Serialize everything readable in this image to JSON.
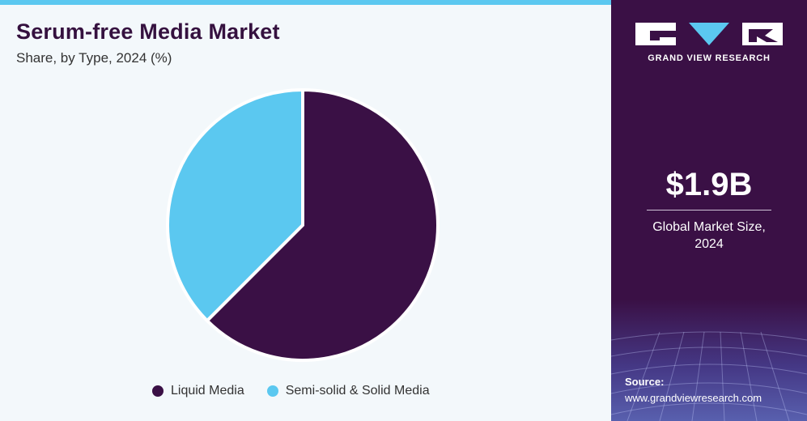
{
  "chart_data": {
    "type": "pie",
    "title": "Serum-free Media Market",
    "subtitle": "Share, by Type, 2024 (%)",
    "series": [
      {
        "name": "Liquid Media",
        "value": 62.5,
        "color": "#3a1045"
      },
      {
        "name": "Semi-solid & Solid Media",
        "value": 37.5,
        "color": "#5bc8f0"
      }
    ],
    "legend_placement": "bottom"
  },
  "sidebar": {
    "brand": "GRAND VIEW RESEARCH",
    "market_size": "$1.9B",
    "market_size_caption_line1": "Global Market Size,",
    "market_size_caption_line2": "2024",
    "source_label": "Source:",
    "source_url": "www.grandviewresearch.com"
  },
  "colors": {
    "brand_dark": "#3a1045",
    "accent": "#5bc8f0",
    "background": "#f3f8fb"
  }
}
